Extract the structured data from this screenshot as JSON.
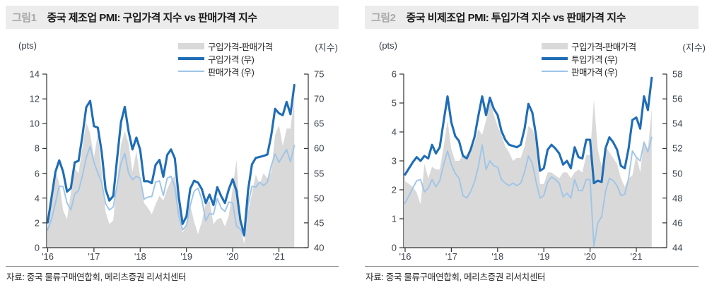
{
  "page_colors": {
    "background": "#FFFFFF",
    "dark_line": "#1F6DB6",
    "light_line": "#9FC5E8",
    "area_fill": "#D9D9D9",
    "title_bar_bg": "#ECECEC",
    "fig_label_text": "#A8A8A8",
    "axis_text": "#3D434E",
    "axis_line": "#333333"
  },
  "chart_data": [
    {
      "type": "line",
      "fig_label": "그림1",
      "title": "중국 제조업 PMI: 구입가격 지수 vs 판매가격 지수",
      "left_unit": "(pts)",
      "right_unit": "(지수)",
      "source": "자료: 중국 물류구매연합회, 메리츠증권 리서치센터",
      "legend": [
        {
          "label": "구입가격-판매가격",
          "swatch": "area"
        },
        {
          "label": "구입가격 (우)",
          "swatch": "dark"
        },
        {
          "label": "판매가격 (우)",
          "swatch": "light"
        }
      ],
      "x_start": "2016-01",
      "x_end": "2021-05",
      "x_ticks": [
        "'16",
        "'17",
        "'18",
        "'19",
        "'20",
        "'21"
      ],
      "left_axis": {
        "min": 0,
        "max": 14,
        "ticks": [
          0,
          2,
          4,
          6,
          8,
          10,
          12,
          14
        ]
      },
      "right_axis": {
        "min": 40,
        "max": 75,
        "ticks": [
          40,
          45,
          50,
          55,
          60,
          65,
          70,
          75
        ]
      },
      "area_note": "gray area = purchase price minus selling price, left axis (pts)",
      "series": [
        {
          "name": "구입가격 (우)",
          "axis": "right",
          "role": "dark",
          "values": [
            45.1,
            50.2,
            55.3,
            57.6,
            55.3,
            51.3,
            52.0,
            57.2,
            57.5,
            62.6,
            68.3,
            69.6,
            64.5,
            64.2,
            59.3,
            51.8,
            49.5,
            50.4,
            57.9,
            65.3,
            68.4,
            63.4,
            59.8,
            62.2,
            59.7,
            53.4,
            53.4,
            53.0,
            56.7,
            57.7,
            54.3,
            58.7,
            59.8,
            58.0,
            50.3,
            44.8,
            46.3,
            51.9,
            53.5,
            53.1,
            51.8,
            49.0,
            50.7,
            48.6,
            52.2,
            50.4,
            49.0,
            51.8,
            53.8,
            51.4,
            45.5,
            42.5,
            51.6,
            56.8,
            58.1,
            58.3,
            58.5,
            58.8,
            62.6,
            68.0,
            67.1,
            66.7,
            69.4,
            66.9,
            72.8
          ]
        },
        {
          "name": "판매가격 (우)",
          "axis": "right",
          "role": "light",
          "values": [
            43.6,
            45.8,
            49.0,
            52.4,
            52.3,
            49.0,
            47.6,
            50.8,
            51.5,
            54.5,
            58.2,
            60.4,
            57.2,
            55.0,
            53.2,
            48.9,
            47.6,
            48.2,
            52.6,
            57.0,
            59.0,
            55.0,
            53.7,
            54.4,
            54.0,
            49.8,
            50.2,
            50.3,
            53.2,
            53.5,
            50.5,
            54.0,
            54.4,
            52.2,
            46.4,
            43.6,
            44.5,
            48.5,
            51.4,
            52.0,
            49.7,
            45.4,
            46.9,
            46.7,
            49.9,
            48.0,
            47.3,
            49.2,
            49.0,
            44.3,
            43.8,
            42.2,
            48.7,
            52.4,
            52.2,
            53.2,
            52.5,
            53.2,
            56.5,
            58.9,
            57.2,
            58.5,
            59.8,
            57.3,
            60.6
          ]
        }
      ]
    },
    {
      "type": "line",
      "fig_label": "그림2",
      "title": "중국 비제조업 PMI: 투입가격 지수 vs 판매가격 지수",
      "left_unit": "(pts)",
      "right_unit": "(지수)",
      "source": "자료: 중국 물류구매연합회, 메리츠증권 리서치센터",
      "legend": [
        {
          "label": "구입가격-판매가격",
          "swatch": "area"
        },
        {
          "label": "투입가격 (우)",
          "swatch": "dark"
        },
        {
          "label": "판매가격 (우)",
          "swatch": "light"
        }
      ],
      "x_start": "2016-01",
      "x_end": "2021-05",
      "x_ticks": [
        "'16",
        "'17",
        "'18",
        "'19",
        "'20",
        "'21"
      ],
      "left_axis": {
        "min": 0,
        "max": 6,
        "ticks": [
          0,
          1,
          2,
          3,
          4,
          5,
          6
        ]
      },
      "right_axis": {
        "min": 44,
        "max": 58,
        "ticks": [
          44,
          46,
          48,
          50,
          52,
          54,
          56,
          58
        ]
      },
      "area_note": "gray area = input price minus sales price, left axis (pts)",
      "series": [
        {
          "name": "투입가격 (우)",
          "axis": "right",
          "role": "dark",
          "values": [
            49.9,
            50.4,
            50.9,
            51.3,
            51.0,
            51.4,
            51.2,
            52.3,
            51.6,
            52.1,
            54.2,
            56.2,
            54.1,
            53.0,
            52.6,
            51.4,
            51.2,
            51.9,
            52.9,
            54.6,
            56.2,
            54.7,
            56.1,
            55.2,
            54.7,
            53.4,
            52.7,
            52.3,
            52.2,
            52.1,
            52.3,
            53.6,
            55.6,
            54.9,
            53.0,
            50.2,
            50.4,
            51.9,
            52.3,
            52.0,
            51.6,
            50.7,
            51.0,
            50.4,
            52.1,
            51.3,
            51.2,
            52.7,
            52.7,
            49.2,
            49.4,
            49.3,
            52.0,
            52.9,
            52.5,
            51.9,
            50.6,
            50.4,
            52.0,
            54.3,
            54.5,
            53.6,
            56.2,
            55.1,
            57.7
          ]
        },
        {
          "name": "판매가격 (우)",
          "axis": "right",
          "role": "light",
          "values": [
            47.6,
            48.2,
            48.8,
            49.4,
            49.5,
            48.5,
            48.8,
            49.5,
            48.9,
            49.4,
            50.7,
            51.8,
            50.7,
            50.0,
            49.6,
            48.2,
            48.0,
            48.5,
            49.3,
            50.5,
            52.3,
            50.3,
            51.0,
            50.6,
            50.5,
            49.5,
            49.2,
            49.0,
            49.2,
            49.0,
            49.2,
            50.1,
            51.4,
            50.8,
            49.3,
            48.0,
            48.2,
            49.3,
            49.7,
            49.5,
            49.2,
            48.1,
            48.4,
            48.0,
            49.5,
            48.6,
            48.6,
            49.5,
            49.5,
            44.1,
            46.0,
            46.5,
            48.5,
            49.6,
            49.4,
            49.0,
            48.2,
            48.3,
            49.6,
            51.8,
            51.3,
            51.0,
            52.5,
            51.7,
            52.9
          ]
        }
      ]
    }
  ]
}
